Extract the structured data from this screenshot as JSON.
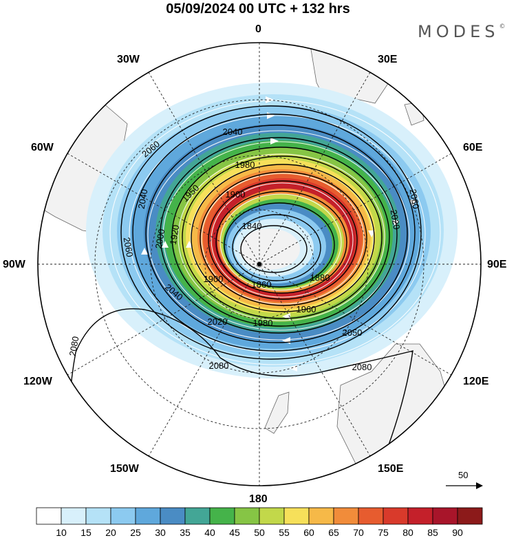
{
  "header": {
    "title": "05/09/2024  00 UTC  + 132 hrs",
    "brand": "MODES",
    "brand_mark": "©"
  },
  "longitude_labels": [
    {
      "id": "0",
      "text": "0"
    },
    {
      "id": "30e",
      "text": "30E"
    },
    {
      "id": "60e",
      "text": "60E"
    },
    {
      "id": "90e",
      "text": "90E"
    },
    {
      "id": "120e",
      "text": "120E"
    },
    {
      "id": "150e",
      "text": "150E"
    },
    {
      "id": "180",
      "text": "180"
    },
    {
      "id": "150w",
      "text": "150W"
    },
    {
      "id": "120w",
      "text": "120W"
    },
    {
      "id": "90w",
      "text": "90W"
    },
    {
      "id": "60w",
      "text": "60W"
    },
    {
      "id": "30w",
      "text": "30W"
    }
  ],
  "height_contours": [
    {
      "label": "1840"
    },
    {
      "label": "1860"
    },
    {
      "label": "1880"
    },
    {
      "label": "1900"
    },
    {
      "label": "1920"
    },
    {
      "label": "1950"
    },
    {
      "label": "1960"
    },
    {
      "label": "1980"
    },
    {
      "label": "2000"
    },
    {
      "label": "2020"
    },
    {
      "label": "2040"
    },
    {
      "label": "2050"
    },
    {
      "label": "2060"
    },
    {
      "label": "2080"
    }
  ],
  "wind_reference": {
    "value": "50"
  },
  "colorbar": {
    "labels": [
      "10",
      "15",
      "20",
      "25",
      "30",
      "35",
      "40",
      "45",
      "50",
      "55",
      "60",
      "65",
      "70",
      "75",
      "80",
      "85",
      "90"
    ],
    "colors": [
      "#ffffff",
      "#d8f0fb",
      "#b5e2f7",
      "#8ccaf0",
      "#5fa8dc",
      "#4a8cc4",
      "#43a696",
      "#45b34a",
      "#86c545",
      "#c2d84a",
      "#f6e05a",
      "#f6b948",
      "#f18c3a",
      "#e75c2f",
      "#d93a2b",
      "#c4202a",
      "#a8152a",
      "#8c1a1a"
    ]
  }
}
